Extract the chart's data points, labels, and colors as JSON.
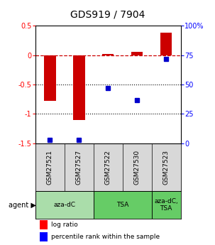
{
  "title": "GDS919 / 7904",
  "samples": [
    "GSM27521",
    "GSM27527",
    "GSM27522",
    "GSM27530",
    "GSM27523"
  ],
  "log_ratios": [
    -0.78,
    -1.1,
    0.02,
    0.05,
    0.38
  ],
  "percentile_ranks": [
    3,
    3,
    47,
    37,
    72
  ],
  "ylim_left": [
    -1.5,
    0.5
  ],
  "ylim_right": [
    0,
    100
  ],
  "bar_color": "#CC0000",
  "dot_color": "#0000CC",
  "bg_color": "#D8D8D8",
  "agent_spans": [
    {
      "start": 0,
      "end": 1,
      "label": "aza-dC",
      "color": "#AADDAA"
    },
    {
      "start": 2,
      "end": 3,
      "label": "TSA",
      "color": "#66CC66"
    },
    {
      "start": 4,
      "end": 4,
      "label": "aza-dC,\nTSA",
      "color": "#66CC66"
    }
  ],
  "left_yticks": [
    0.5,
    0.0,
    -0.5,
    -1.0,
    -1.5
  ],
  "left_yticklabels": [
    "0.5",
    "0",
    "-0.5",
    "-1",
    "-1.5"
  ],
  "right_yticks": [
    100,
    75,
    50,
    25,
    0
  ],
  "right_yticklabels": [
    "100%",
    "75",
    "50",
    "25",
    "0"
  ],
  "hline_y": 0,
  "dotted_lines": [
    -0.5,
    -1.0
  ]
}
